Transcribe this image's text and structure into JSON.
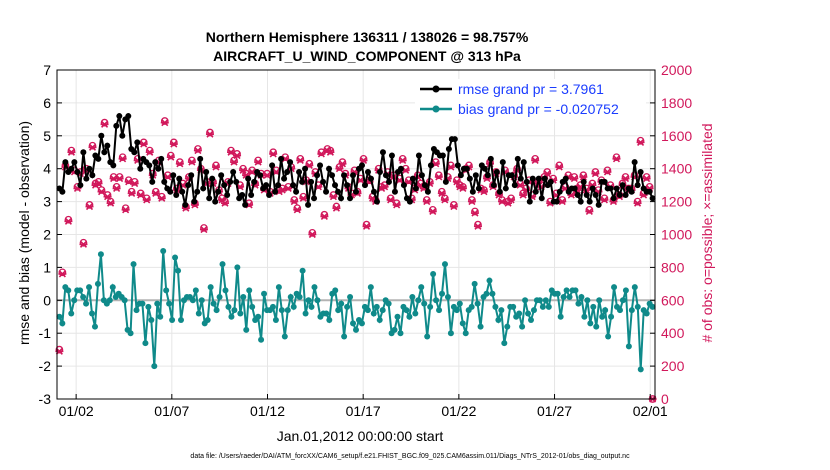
{
  "chart_data": {
    "type": "line",
    "title": "Northern Hemisphere 136311 / 138026 = 98.757%",
    "subtitle": "AIRCRAFT_U_WIND_COMPONENT @ 313 hPa",
    "xlabel": "Jan.01,2012 00:00:00 start",
    "ylabel": "rmse and bias (model - observation)",
    "ylabel_right": "# of obs: o=possible; ×=assimilated",
    "footer": "data file: /Users/raeder/DAI/ATM_forcXX/CAM6_setup/f.e21.FHIST_BGC.f09_025.CAM6assim.011/Diags_NTrS_2012-01/obs_diag_output.nc",
    "x_range": [
      0.5,
      31.75
    ],
    "ylim": [
      -3,
      7
    ],
    "ylim_right": [
      0,
      2000
    ],
    "x_ticks": [
      1.5,
      6.5,
      11.5,
      16.5,
      21.5,
      26.5,
      31.5
    ],
    "x_tick_labels": [
      "01/02",
      "01/07",
      "01/12",
      "01/17",
      "01/22",
      "01/27",
      "02/01"
    ],
    "y_ticks": [
      -3,
      -2,
      -1,
      0,
      1,
      2,
      3,
      4,
      5,
      6,
      7
    ],
    "y_tick_labels": [
      "-3",
      "-2",
      "-1",
      "0",
      "1",
      "2",
      "3",
      "4",
      "5",
      "6",
      "7"
    ],
    "y2_ticks": [
      0,
      200,
      400,
      600,
      800,
      1000,
      1200,
      1400,
      1600,
      1800,
      2000
    ],
    "y2_tick_labels": [
      "0",
      "200",
      "400",
      "600",
      "800",
      "1000",
      "1200",
      "1400",
      "1600",
      "1800",
      "2000"
    ],
    "legend": [
      {
        "name": "rmse grand pr = 3.7961",
        "color": "#000000"
      },
      {
        "name": "bias grand pr = -0.020752",
        "color": "#0f8a8a"
      }
    ],
    "colors": {
      "rmse": "#000000",
      "bias": "#0f8a8a",
      "obs": "#d1185b",
      "zero_line": "#b3b3b3",
      "grid": "#e6e6e6",
      "legend_text": "#1a3cff"
    },
    "series": [
      {
        "name": "rmse",
        "values": [
          3.4,
          3.3,
          4.2,
          3.9,
          4.0,
          4.2,
          3.9,
          3.5,
          4.5,
          3.7,
          4.0,
          3.8,
          4.4,
          4.3,
          5.0,
          4.5,
          4.7,
          4.2,
          4.1,
          5.3,
          5.6,
          5.0,
          5.5,
          5.6,
          4.6,
          4.5,
          4.8,
          4.0,
          4.3,
          4.2,
          4.1,
          3.6,
          4.2,
          4.0,
          4.3,
          3.6,
          3.4,
          3.3,
          3.8,
          3.2,
          3.7,
          3.3,
          2.9,
          3.5,
          3.8,
          3.0,
          3.3,
          4.3,
          3.4,
          3.9,
          3.1,
          3.7,
          3.0,
          3.3,
          3.8,
          3.5,
          3.2,
          3.6,
          3.9,
          3.6,
          3.1,
          3.2,
          2.9,
          3.7,
          3.2,
          3.6,
          3.9,
          3.8,
          3.4,
          3.5,
          3.2,
          4.1,
          3.3,
          3.5,
          4.3,
          3.7,
          3.9,
          4.2,
          3.5,
          3.3,
          3.9,
          3.6,
          4.0,
          2.9,
          3.6,
          3.1,
          3.8,
          4.1,
          3.6,
          3.3,
          4.0,
          3.8,
          3.5,
          3.3,
          3.1,
          3.8,
          3.5,
          3.1,
          3.8,
          3.3,
          4.0,
          4.1,
          3.5,
          3.9,
          3.7,
          3.3,
          3.0,
          3.9,
          4.5,
          3.8,
          3.6,
          4.4,
          3.3,
          3.9,
          4.0,
          3.5,
          3.1,
          3.0,
          3.7,
          3.4,
          4.4,
          3.8,
          3.5,
          3.3,
          4.1,
          4.6,
          4.5,
          4.4,
          4.4,
          3.6,
          4.6,
          4.9,
          4.9,
          4.1,
          3.8,
          4.0,
          4.0,
          3.7,
          3.3,
          3.8,
          3.4,
          4.1,
          4.0,
          3.8,
          4.3,
          3.5,
          3.9,
          3.3,
          4.2,
          3.4,
          3.8,
          3.8,
          3.5,
          4.3,
          3.7,
          4.2,
          3.6,
          3.0,
          3.7,
          3.3,
          3.7,
          3.1,
          3.7,
          3.5,
          3.6,
          3.0,
          3.0,
          3.3,
          3.6,
          3.7,
          3.3,
          3.4,
          3.4,
          3.2,
          3.0,
          3.6,
          3.2,
          3.0,
          3.4,
          3.2,
          2.9,
          3.6,
          3.6,
          3.4,
          3.4,
          3.1,
          3.4,
          3.2,
          3.5,
          3.2,
          3.4,
          3.3,
          4.2,
          3.5,
          3.9,
          3.4,
          3.3,
          3.3,
          3.1
        ]
      },
      {
        "name": "bias",
        "values": [
          -0.5,
          -0.7,
          0.4,
          0.3,
          -0.4,
          0.0,
          0.3,
          0.3,
          0.1,
          -0.1,
          0.4,
          -0.4,
          -0.8,
          0.5,
          1.4,
          0.0,
          -0.1,
          0.0,
          0.4,
          0.1,
          0.2,
          0.1,
          0.0,
          -0.9,
          -1.0,
          1.1,
          -0.3,
          -0.1,
          -0.1,
          -1.3,
          -0.2,
          -0.6,
          -2.0,
          -0.1,
          -0.5,
          1.5,
          0.3,
          -0.1,
          -0.6,
          1.3,
          0.9,
          -0.6,
          0.0,
          0.1,
          0.1,
          0.0,
          0.3,
          -0.4,
          0.0,
          -0.7,
          -0.6,
          0.4,
          -0.1,
          -0.3,
          0.1,
          1.1,
          0.3,
          -0.2,
          -0.5,
          -0.3,
          1.0,
          -0.4,
          0.1,
          -0.9,
          0.3,
          -0.2,
          -0.6,
          -0.5,
          -1.2,
          0.2,
          -0.3,
          -0.3,
          -0.2,
          -0.6,
          0.4,
          -0.3,
          -1.1,
          -0.3,
          0.1,
          -0.2,
          0.2,
          0.1,
          0.9,
          -0.4,
          0.0,
          -0.2,
          0.4,
          0.0,
          -0.5,
          -0.4,
          -0.4,
          -0.6,
          0.2,
          0.3,
          -0.3,
          -0.1,
          -1.1,
          -0.2,
          0.1,
          -0.7,
          -0.9,
          -0.6,
          -0.7,
          -0.2,
          -0.3,
          0.4,
          -0.4,
          -0.2,
          -0.6,
          -0.3,
          0.0,
          -0.1,
          -1.0,
          -0.9,
          -0.5,
          -1.0,
          -0.2,
          -0.3,
          -0.5,
          0.1,
          -0.4,
          0.0,
          0.4,
          -0.1,
          -1.1,
          -0.2,
          0.8,
          0.0,
          -0.3,
          0.2,
          1.1,
          0.1,
          -1.0,
          -0.2,
          -0.3,
          -0.1,
          -0.7,
          -1.0,
          -0.3,
          -0.2,
          0.5,
          -0.1,
          -0.8,
          0.1,
          0.2,
          0.6,
          0.2,
          -0.2,
          -0.6,
          -0.3,
          -1.3,
          -0.8,
          -0.2,
          -0.2,
          -0.5,
          -0.4,
          -0.8,
          0.0,
          -0.4,
          -0.6,
          -0.3,
          0.0,
          0.0,
          -0.2,
          0.0,
          -0.2,
          0.3,
          0.2,
          0.2,
          -0.5,
          0.1,
          0.3,
          0.1,
          0.3,
          0.3,
          -0.1,
          0.1,
          -0.5,
          0.0,
          -0.7,
          -0.2,
          -0.8,
          0.0,
          -0.5,
          -0.3,
          -1.1,
          -0.5,
          0.4,
          -0.2,
          -0.3,
          0.0,
          0.3,
          -1.4,
          -0.3,
          0.4,
          -0.2,
          -2.1,
          -0.3,
          -0.4,
          -0.1,
          -0.2
        ]
      },
      {
        "name": "obs possible",
        "values": [
          300,
          770,
          1420,
          1090,
          1510,
          1390,
          1290,
          1380,
          950,
          1400,
          1180,
          1540,
          1310,
          1320,
          1270,
          1680,
          1240,
          1200,
          1350,
          1290,
          1350,
          1470,
          1160,
          1330,
          1260,
          1320,
          1460,
          1250,
          1560,
          1220,
          1510,
          1370,
          1260,
          1450,
          1230,
          1690,
          1360,
          1480,
          1560,
          1280,
          1440,
          1310,
          1170,
          1350,
          1450,
          1190,
          1520,
          1400,
          1040,
          1320,
          1620,
          1320,
          1420,
          1270,
          1220,
          1200,
          1320,
          1510,
          1450,
          1490,
          1300,
          1400,
          1370,
          1190,
          1390,
          1310,
          1450,
          1370,
          1280,
          1370,
          1260,
          1500,
          1390,
          1270,
          1280,
          1470,
          1290,
          1410,
          1210,
          1160,
          1460,
          1230,
          1330,
          1430,
          1010,
          1380,
          1300,
          1500,
          1120,
          1520,
          1510,
          1240,
          1170,
          1410,
          1440,
          1370,
          1290,
          1250,
          1390,
          1260,
          1340,
          1460,
          1060,
          1330,
          1230,
          1210,
          1400,
          1290,
          1300,
          1380,
          1220,
          1360,
          1190,
          1340,
          1460,
          1400,
          1330,
          1220,
          1280,
          1360,
          1310,
          1290,
          1210,
          1320,
          1150,
          1440,
          1360,
          1260,
          1220,
          1350,
          1420,
          1180,
          1330,
          1300,
          1290,
          1400,
          1420,
          1210,
          1140,
          1060,
          1280,
          1270,
          1350,
          1440,
          1300,
          1380,
          1250,
          1210,
          1390,
          1200,
          1220,
          1360,
          1400,
          1310,
          1250,
          1280,
          1330,
          1240,
          1460,
          1320,
          1300,
          1350,
          1380,
          1200,
          1340,
          1250,
          1420,
          1210,
          1290,
          1360,
          1250,
          1350,
          1280,
          1300,
          1360,
          1280,
          1150,
          1310,
          1380,
          1270,
          1330,
          1220,
          1390,
          1300,
          1210,
          1470,
          1240,
          1310,
          1350,
          1280,
          1280,
          1360,
          1200,
          1570,
          1250,
          1350,
          1290,
          0
        ]
      },
      {
        "name": "obs assimilated",
        "values": [
          290,
          760,
          1410,
          1080,
          1500,
          1380,
          1280,
          1370,
          940,
          1390,
          1170,
          1530,
          1300,
          1310,
          1260,
          1670,
          1230,
          1190,
          1340,
          1280,
          1340,
          1460,
          1150,
          1320,
          1250,
          1310,
          1450,
          1240,
          1550,
          1210,
          1500,
          1360,
          1250,
          1440,
          1220,
          1680,
          1350,
          1470,
          1550,
          1270,
          1430,
          1300,
          1160,
          1340,
          1440,
          1180,
          1510,
          1390,
          1030,
          1310,
          1610,
          1310,
          1410,
          1260,
          1210,
          1190,
          1310,
          1500,
          1440,
          1480,
          1290,
          1390,
          1360,
          1180,
          1380,
          1300,
          1440,
          1360,
          1270,
          1360,
          1250,
          1490,
          1380,
          1260,
          1270,
          1460,
          1280,
          1400,
          1200,
          1150,
          1450,
          1220,
          1320,
          1420,
          1000,
          1370,
          1290,
          1490,
          1110,
          1510,
          1500,
          1230,
          1160,
          1400,
          1430,
          1360,
          1280,
          1240,
          1380,
          1250,
          1330,
          1450,
          1050,
          1320,
          1220,
          1200,
          1390,
          1280,
          1290,
          1370,
          1210,
          1350,
          1180,
          1330,
          1450,
          1390,
          1320,
          1210,
          1270,
          1350,
          1300,
          1280,
          1200,
          1310,
          1140,
          1430,
          1350,
          1250,
          1210,
          1340,
          1410,
          1170,
          1320,
          1290,
          1280,
          1390,
          1410,
          1200,
          1130,
          1050,
          1270,
          1260,
          1340,
          1430,
          1290,
          1370,
          1240,
          1200,
          1380,
          1190,
          1210,
          1350,
          1390,
          1300,
          1240,
          1270,
          1320,
          1230,
          1450,
          1310,
          1290,
          1340,
          1370,
          1190,
          1330,
          1240,
          1410,
          1200,
          1280,
          1350,
          1240,
          1340,
          1270,
          1290,
          1350,
          1270,
          1140,
          1300,
          1370,
          1260,
          1320,
          1210,
          1380,
          1290,
          1200,
          1460,
          1230,
          1300,
          1340,
          1270,
          1270,
          1350,
          1190,
          1560,
          1240,
          1340,
          1280,
          0
        ]
      }
    ]
  }
}
